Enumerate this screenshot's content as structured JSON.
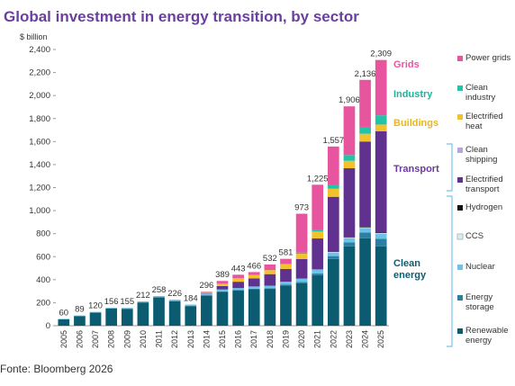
{
  "chart_data": {
    "type": "stacked_bar",
    "title": "Global investment in energy transition, by sector",
    "y_label": "$ billion",
    "source": "Fonte: Bloomberg 2026",
    "categories": [
      "2005",
      "2006",
      "2007",
      "2008",
      "2009",
      "2010",
      "2011",
      "2012",
      "2013",
      "2014",
      "2015",
      "2016",
      "2017",
      "2018",
      "2019",
      "2020",
      "2021",
      "2022",
      "2023",
      "2024",
      "2025"
    ],
    "ylim": [
      0,
      2400
    ],
    "yticks": [
      0,
      200,
      400,
      600,
      800,
      {
        "value": 1000,
        "label": "1,000"
      },
      {
        "value": 1200,
        "label": "1,200"
      },
      {
        "value": 1400,
        "label": "1,400"
      },
      {
        "value": 1600,
        "label": "1,600"
      },
      {
        "value": 1800,
        "label": "1,800"
      },
      {
        "value": 2000,
        "label": "2,000"
      },
      {
        "value": 2200,
        "label": "2,200"
      },
      {
        "value": 2400,
        "label": "2,400"
      }
    ],
    "series": [
      {
        "name": "Renewable energy",
        "color": "#0b5c70",
        "values": [
          55,
          84,
          114,
          149,
          147,
          202,
          246,
          214,
          171,
          262,
          295,
          305,
          316,
          320,
          350,
          370,
          440,
          580,
          690,
          760,
          690
        ]
      },
      {
        "name": "Energy storage",
        "color": "#2b7fa3",
        "values": [
          0,
          0,
          0,
          0,
          0,
          0,
          0,
          0,
          0,
          2,
          3,
          4,
          5,
          6,
          8,
          10,
          15,
          25,
          35,
          50,
          65
        ]
      },
      {
        "name": "Nuclear",
        "color": "#6cc3e8",
        "values": [
          5,
          5,
          6,
          7,
          8,
          10,
          12,
          12,
          13,
          15,
          17,
          18,
          20,
          22,
          25,
          30,
          30,
          30,
          35,
          40,
          45
        ]
      },
      {
        "name": "CCS",
        "color": "#d4eef8",
        "values": [
          0,
          0,
          0,
          0,
          0,
          0,
          0,
          0,
          0,
          0,
          0,
          0,
          0,
          0,
          0,
          0,
          3,
          5,
          5,
          5,
          5
        ]
      },
      {
        "name": "Hydrogen",
        "color": "#111111",
        "values": [
          0,
          0,
          0,
          0,
          0,
          0,
          0,
          0,
          0,
          0,
          0,
          0,
          0,
          0,
          0,
          0,
          0,
          0,
          3,
          5,
          5
        ]
      },
      {
        "name": "Electrified transport",
        "color": "#61318f",
        "values": [
          0,
          0,
          0,
          0,
          0,
          0,
          0,
          0,
          0,
          5,
          30,
          55,
          70,
          100,
          110,
          170,
          270,
          480,
          600,
          740,
          880
        ]
      },
      {
        "name": "Clean shipping",
        "color": "#b7a6dc",
        "values": [
          0,
          0,
          0,
          0,
          0,
          0,
          0,
          0,
          0,
          0,
          0,
          0,
          0,
          0,
          0,
          0,
          0,
          0,
          0,
          3,
          3
        ]
      },
      {
        "name": "Electrified heat",
        "color": "#f2c12e",
        "values": [
          0,
          0,
          0,
          0,
          0,
          0,
          0,
          0,
          0,
          8,
          20,
          30,
          30,
          35,
          40,
          45,
          60,
          70,
          65,
          65,
          55
        ]
      },
      {
        "name": "Clean industry",
        "color": "#22c4a8",
        "values": [
          0,
          0,
          0,
          0,
          0,
          0,
          0,
          0,
          0,
          0,
          0,
          0,
          0,
          0,
          5,
          10,
          15,
          30,
          50,
          60,
          80
        ]
      },
      {
        "name": "Power grids",
        "color": "#e8559f",
        "values": [
          0,
          0,
          0,
          0,
          0,
          0,
          0,
          0,
          0,
          4,
          24,
          31,
          25,
          49,
          43,
          338,
          392,
          337,
          423,
          408,
          481
        ]
      }
    ],
    "totals": {
      "values": [
        60,
        89,
        120,
        156,
        155,
        212,
        258,
        226,
        184,
        296,
        389,
        443,
        466,
        532,
        581,
        973,
        1225,
        1557,
        1906,
        2136,
        2309
      ],
      "value_labels": [
        "60",
        "89",
        "120",
        "156",
        "155",
        "212",
        "258",
        "226",
        "184",
        "296",
        "389",
        "443",
        "466",
        "532",
        "581",
        "973",
        "1,225",
        "1,557",
        "1,906",
        "2,136",
        "2,309"
      ]
    },
    "legend_groups": [
      {
        "label": "Grids",
        "color": "#e8559f"
      },
      {
        "label": "Industry",
        "color": "#1fb39a"
      },
      {
        "label": "Buildings",
        "color": "#e8b620"
      },
      {
        "label": "Transport",
        "color": "#6b3a9c"
      },
      {
        "label": "Clean energy",
        "color": "#0b5c70"
      }
    ]
  }
}
